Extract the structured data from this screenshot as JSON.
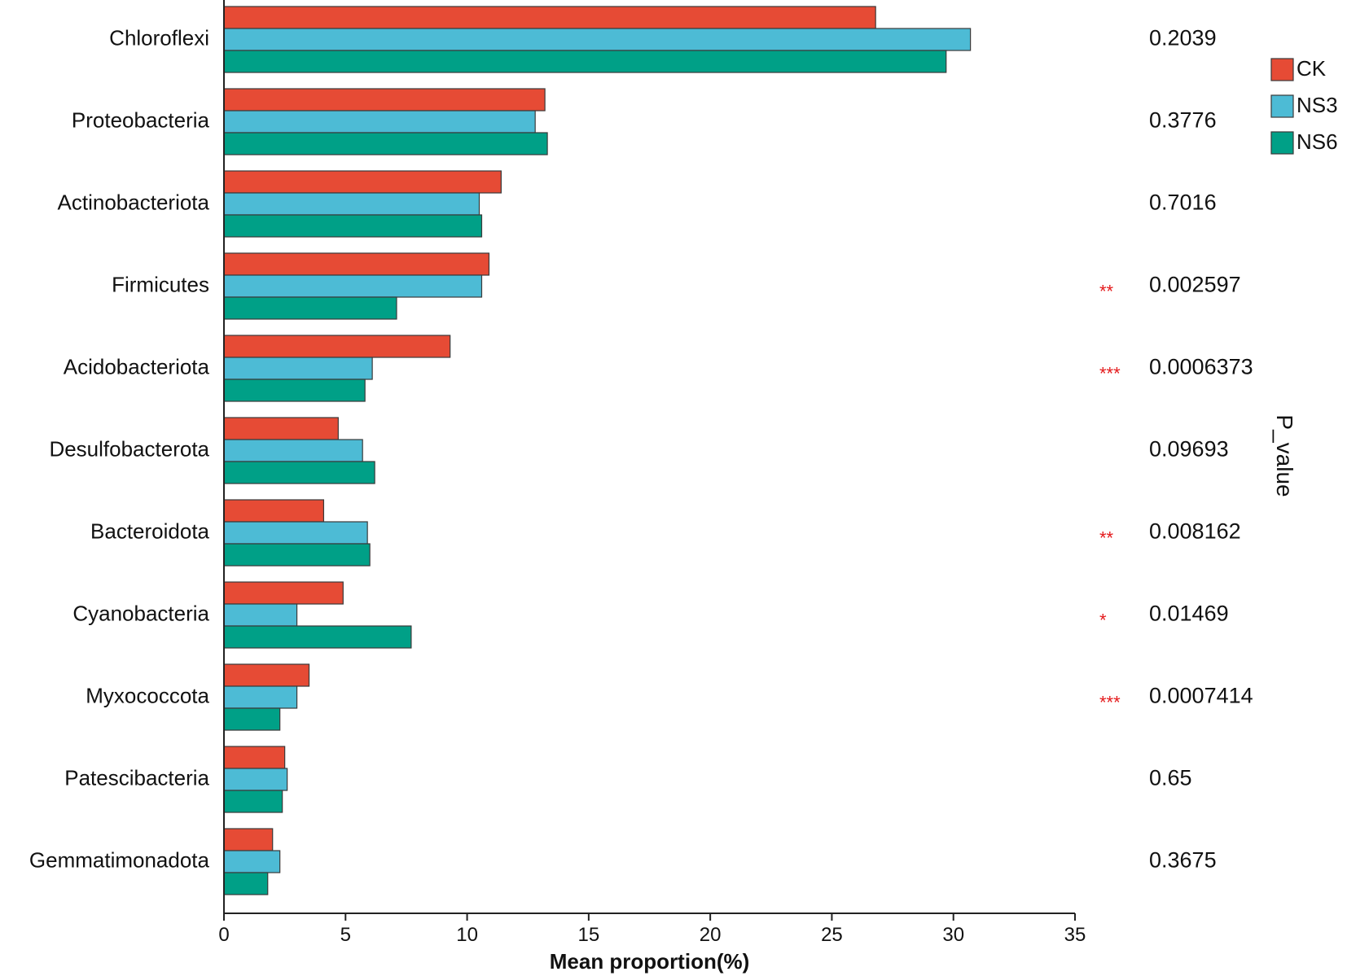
{
  "chart_data": {
    "type": "bar",
    "orientation": "horizontal",
    "title": "",
    "xlabel": "Mean proportion(%)",
    "ylabel": "",
    "xlim": [
      0,
      35
    ],
    "xticks": [
      0,
      5,
      10,
      15,
      20,
      25,
      30,
      35
    ],
    "xtick_labels": [
      "0",
      "5",
      "10",
      "15",
      "20",
      "25",
      "30",
      "35"
    ],
    "pvalue_title": "P_value",
    "legend_position": "top-right",
    "categories": [
      "Chloroflexi",
      "Proteobacteria",
      "Actinobacteriota",
      "Firmicutes",
      "Acidobacteriota",
      "Desulfobacterota",
      "Bacteroidota",
      "Cyanobacteria",
      "Myxococcota",
      "Patescibacteria",
      "Gemmatimonadota"
    ],
    "series": [
      {
        "name": "CK",
        "color": "#e64b35",
        "values": [
          26.8,
          13.2,
          11.4,
          10.9,
          9.3,
          4.7,
          4.1,
          4.9,
          3.5,
          2.5,
          2.0
        ]
      },
      {
        "name": "NS3",
        "color": "#4dbbd5",
        "values": [
          30.7,
          12.8,
          10.5,
          10.6,
          6.1,
          5.7,
          5.9,
          3.0,
          3.0,
          2.6,
          2.3
        ]
      },
      {
        "name": "NS6",
        "color": "#00a087",
        "values": [
          29.7,
          13.3,
          10.6,
          7.1,
          5.8,
          6.2,
          6.0,
          7.7,
          2.3,
          2.4,
          1.8
        ]
      }
    ],
    "p_values": [
      "0.2039",
      "0.3776",
      "0.7016",
      "0.002597",
      "0.0006373",
      "0.09693",
      "0.008162",
      "0.01469",
      "0.0007414",
      "0.65",
      "0.3675"
    ],
    "significance": [
      "",
      "",
      "",
      "**",
      "***",
      "",
      "**",
      "*",
      "***",
      "",
      ""
    ]
  }
}
